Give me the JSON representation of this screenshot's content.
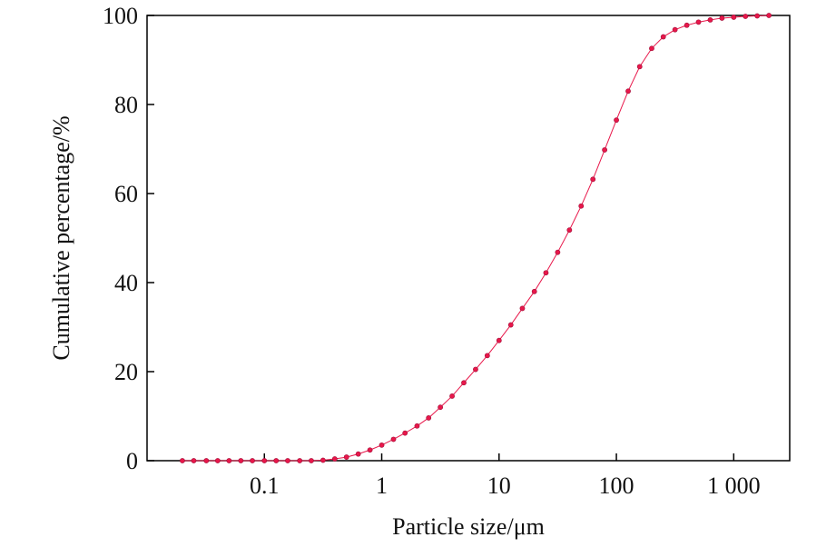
{
  "chart_data": {
    "type": "scatter",
    "x_label": "Particle size/μm",
    "y_label": "Cumulative percentage/%",
    "x_scale": "log",
    "color": "#e8174a",
    "x": [
      0.02,
      0.025,
      0.032,
      0.04,
      0.05,
      0.063,
      0.079,
      0.1,
      0.126,
      0.158,
      0.2,
      0.251,
      0.316,
      0.398,
      0.501,
      0.631,
      0.794,
      1,
      1.26,
      1.58,
      2,
      2.51,
      3.16,
      3.98,
      5.01,
      6.31,
      7.94,
      10,
      12.6,
      15.8,
      20,
      25.1,
      31.6,
      39.8,
      50.1,
      63.1,
      79.4,
      100,
      126,
      158,
      200,
      251,
      316,
      398,
      501,
      631,
      794,
      1000,
      1259,
      1585,
      1995
    ],
    "values": [
      0,
      0,
      0,
      0,
      0,
      0,
      0,
      0,
      0,
      0,
      0,
      0,
      0.1,
      0.4,
      0.8,
      1.5,
      2.4,
      3.5,
      4.8,
      6.2,
      7.8,
      9.6,
      12,
      14.5,
      17.5,
      20.5,
      23.6,
      27,
      30.5,
      34.2,
      38,
      42.2,
      46.8,
      51.8,
      57.2,
      63.2,
      69.8,
      76.5,
      83,
      88.5,
      92.6,
      95.2,
      96.8,
      97.8,
      98.5,
      99,
      99.4,
      99.6,
      99.8,
      99.9,
      100
    ],
    "xlim": [
      0.01,
      3000
    ],
    "ylim": [
      0,
      100
    ],
    "xticks": [
      0.1,
      1,
      10,
      100,
      {
        "value": 1000,
        "label": "1 000"
      }
    ],
    "yticks": [
      0,
      20,
      40,
      60,
      80,
      100
    ]
  }
}
